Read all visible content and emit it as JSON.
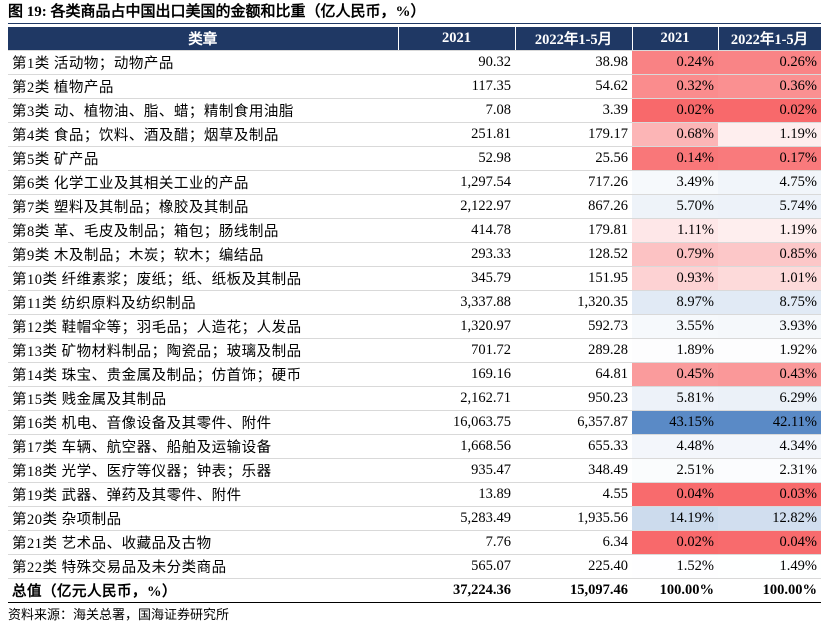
{
  "title": "图 19: 各类商品占中国出口美国的金额和比重（亿人民币，%）",
  "table": {
    "header": [
      "类章",
      "2021",
      "2022年1-5月",
      "2021",
      "2022年1-5月"
    ],
    "rows": [
      [
        "第1类 活动物；动物产品",
        "90.32",
        "38.98",
        "0.24%",
        "0.26%"
      ],
      [
        "第2类 植物产品",
        "117.35",
        "54.62",
        "0.32%",
        "0.36%"
      ],
      [
        "第3类 动、植物油、脂、蜡；精制食用油脂",
        "7.08",
        "3.39",
        "0.02%",
        "0.02%"
      ],
      [
        "第4类 食品；饮料、酒及醋；烟草及制品",
        "251.81",
        "179.17",
        "0.68%",
        "1.19%"
      ],
      [
        "第5类 矿产品",
        "52.98",
        "25.56",
        "0.14%",
        "0.17%"
      ],
      [
        "第6类 化学工业及其相关工业的产品",
        "1,297.54",
        "717.26",
        "3.49%",
        "4.75%"
      ],
      [
        "第7类 塑料及其制品；橡胶及其制品",
        "2,122.97",
        "867.26",
        "5.70%",
        "5.74%"
      ],
      [
        "第8类 革、毛皮及制品；箱包；肠线制品",
        "414.78",
        "179.81",
        "1.11%",
        "1.19%"
      ],
      [
        "第9类 木及制品；木炭；软木；编结品",
        "293.33",
        "128.52",
        "0.79%",
        "0.85%"
      ],
      [
        "第10类 纤维素浆；废纸；纸、纸板及其制品",
        "345.79",
        "151.95",
        "0.93%",
        "1.01%"
      ],
      [
        "第11类 纺织原料及纺织制品",
        "3,337.88",
        "1,320.35",
        "8.97%",
        "8.75%"
      ],
      [
        "第12类 鞋帽伞等；羽毛品；人造花；人发品",
        "1,320.97",
        "592.73",
        "3.55%",
        "3.93%"
      ],
      [
        "第13类 矿物材料制品；陶瓷品；玻璃及制品",
        "701.72",
        "289.28",
        "1.89%",
        "1.92%"
      ],
      [
        "第14类 珠宝、贵金属及制品；仿首饰；硬币",
        "169.16",
        "64.81",
        "0.45%",
        "0.43%"
      ],
      [
        "第15类 贱金属及其制品",
        "2,162.71",
        "950.23",
        "5.81%",
        "6.29%"
      ],
      [
        "第16类 机电、音像设备及其零件、附件",
        "16,063.75",
        "6,357.87",
        "43.15%",
        "42.11%"
      ],
      [
        "第17类 车辆、航空器、船舶及运输设备",
        "1,668.56",
        "655.33",
        "4.48%",
        "4.34%"
      ],
      [
        "第18类 光学、医疗等仪器；钟表；乐器",
        "935.47",
        "348.49",
        "2.51%",
        "2.31%"
      ],
      [
        "第19类 武器、弹药及其零件、附件",
        "13.89",
        "4.55",
        "0.04%",
        "0.03%"
      ],
      [
        "第20类 杂项制品",
        "5,283.49",
        "1,935.56",
        "14.19%",
        "12.82%"
      ],
      [
        "第21类 艺术品、收藏品及古物",
        "7.76",
        "6.34",
        "0.02%",
        "0.04%"
      ],
      [
        "第22类 特殊交易品及未分类商品",
        "565.07",
        "225.40",
        "1.52%",
        "1.49%"
      ]
    ],
    "total": [
      "总值（亿元人民币，%）",
      "37,224.36",
      "15,097.46",
      "100.00%",
      "100.00%"
    ]
  },
  "source": "资料来源：海关总署，国海证券研究所"
}
